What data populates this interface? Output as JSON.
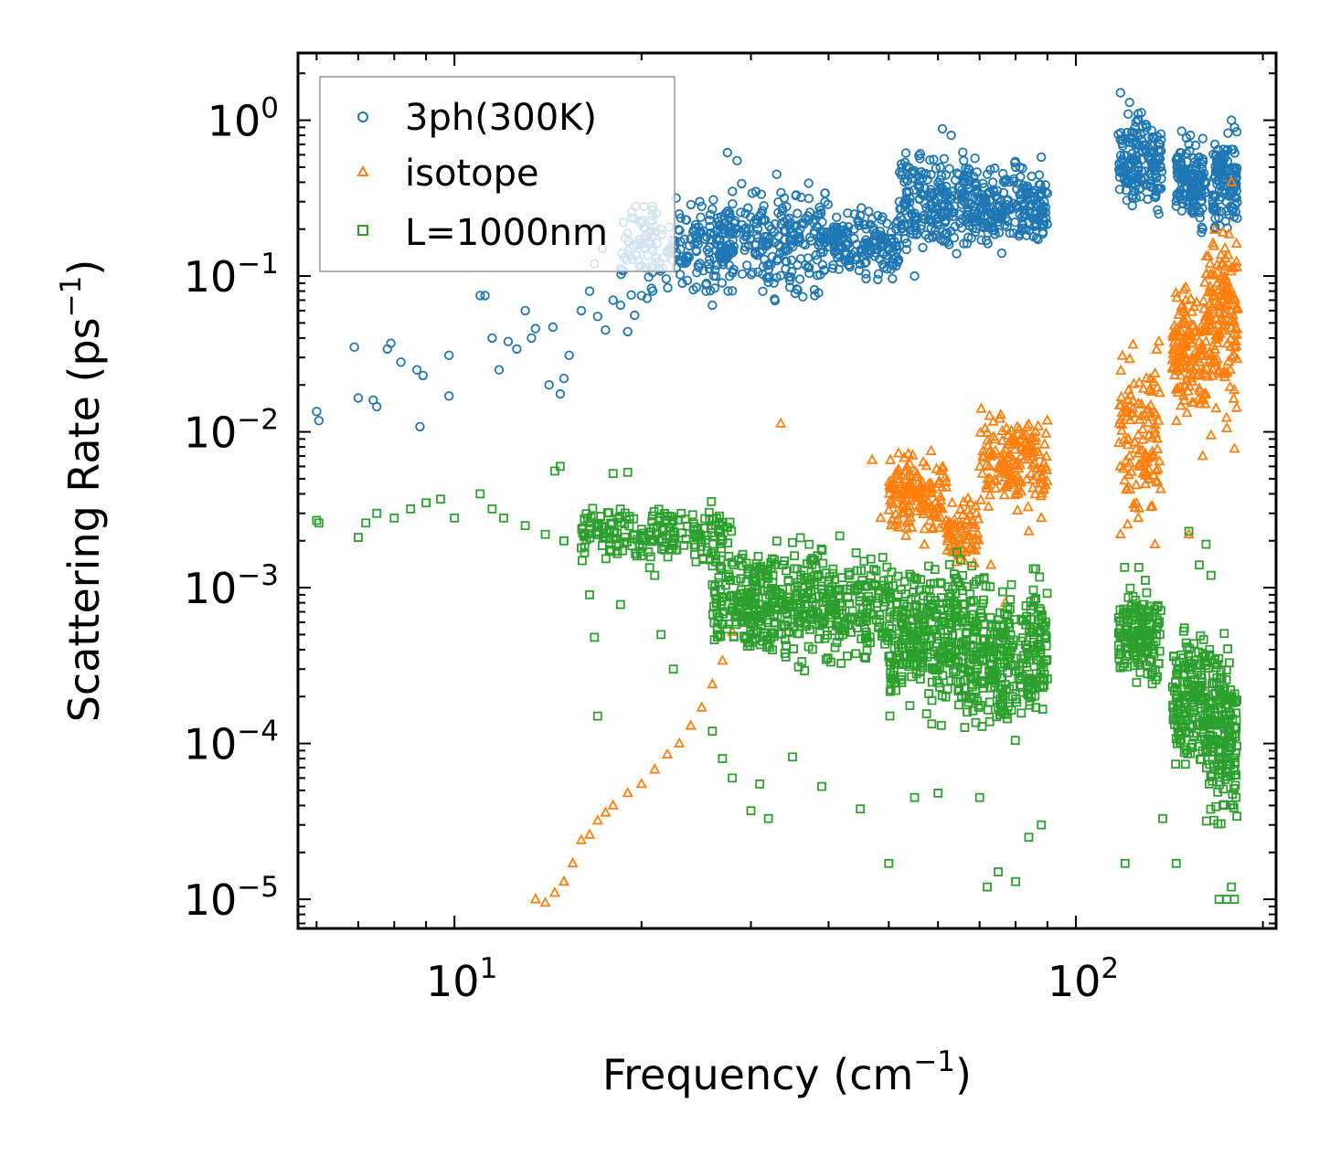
{
  "chart_data": {
    "type": "scatter",
    "xscale": "log",
    "yscale": "log",
    "xlabel": "Frequency (cm",
    "xlabel_exp": "−1",
    "xlabel_close": ")",
    "ylabel": "Scattering Rate (ps",
    "ylabel_exp": "−1",
    "ylabel_close": ")",
    "xlim": [
      5.6,
      210
    ],
    "ylim": [
      6.5e-06,
      2.7
    ],
    "xticks": [
      {
        "value": 10,
        "base": "10",
        "exp": "1"
      },
      {
        "value": 100,
        "base": "10",
        "exp": "2"
      }
    ],
    "yticks": [
      {
        "value": 1,
        "base": "10",
        "exp": "0"
      },
      {
        "value": 0.1,
        "base": "10",
        "exp": "−1"
      },
      {
        "value": 0.01,
        "base": "10",
        "exp": "−2"
      },
      {
        "value": 0.001,
        "base": "10",
        "exp": "−3"
      },
      {
        "value": 0.0001,
        "base": "10",
        "exp": "−4"
      },
      {
        "value": 1e-05,
        "base": "10",
        "exp": "−5"
      }
    ],
    "legend_position": "top-left",
    "series": [
      {
        "name": "3ph(300K)",
        "marker": "circle",
        "color": "#1f77b4",
        "points": [
          [
            6.0,
            0.0135
          ],
          [
            6.05,
            0.0118
          ],
          [
            6.9,
            0.035
          ],
          [
            7.0,
            0.0165
          ],
          [
            7.4,
            0.016
          ],
          [
            7.5,
            0.0145
          ],
          [
            7.8,
            0.034
          ],
          [
            7.9,
            0.037
          ],
          [
            8.2,
            0.028
          ],
          [
            8.7,
            0.025
          ],
          [
            8.9,
            0.023
          ],
          [
            8.8,
            0.0108
          ],
          [
            9.8,
            0.031
          ],
          [
            9.8,
            0.017
          ],
          [
            11.0,
            0.075
          ],
          [
            11.2,
            0.075
          ],
          [
            11.5,
            0.04
          ],
          [
            11.8,
            0.025
          ],
          [
            12.2,
            0.038
          ],
          [
            12.6,
            0.034
          ],
          [
            13.0,
            0.06
          ],
          [
            13.3,
            0.04
          ],
          [
            13.5,
            0.046
          ],
          [
            14.2,
            0.02
          ],
          [
            14.4,
            0.047
          ],
          [
            14.8,
            0.0175
          ],
          [
            15.0,
            0.022
          ],
          [
            15.3,
            0.031
          ],
          [
            16.0,
            0.06
          ],
          [
            16.5,
            0.08
          ],
          [
            17.0,
            0.055
          ],
          [
            17.5,
            0.045
          ],
          [
            18.0,
            0.07
          ],
          [
            18.5,
            0.065
          ],
          [
            19.0,
            0.044
          ],
          [
            19.5,
            0.056
          ],
          [
            20.0,
            0.075
          ],
          [
            16.8,
            0.12
          ],
          [
            17.3,
            0.15
          ],
          [
            18.6,
            0.14
          ],
          [
            21.5,
            0.2
          ],
          [
            23.0,
            0.25
          ],
          [
            25.0,
            0.28
          ],
          [
            26.0,
            0.065
          ],
          [
            27.5,
            0.62
          ],
          [
            28.5,
            0.55
          ],
          [
            33.0,
            0.45
          ],
          [
            36.0,
            0.2
          ],
          [
            38.0,
            0.075
          ],
          [
            44.0,
            0.2
          ],
          [
            48.0,
            0.095
          ],
          [
            52.0,
            0.3
          ],
          [
            55.0,
            0.1
          ],
          [
            61.0,
            0.88
          ],
          [
            63.0,
            0.8
          ],
          [
            66.0,
            0.55
          ],
          [
            72.0,
            0.45
          ],
          [
            76.0,
            0.14
          ],
          [
            80.0,
            0.5
          ],
          [
            85.0,
            0.35
          ],
          [
            88.0,
            0.58
          ],
          [
            118.0,
            1.5
          ],
          [
            122.0,
            1.3
          ],
          [
            126.0,
            1.1
          ],
          [
            130.0,
            0.9
          ],
          [
            134.0,
            0.5
          ],
          [
            136.0,
            0.25
          ],
          [
            148.0,
            0.85
          ],
          [
            152.0,
            0.7
          ],
          [
            156.0,
            0.5
          ],
          [
            159.0,
            0.3
          ],
          [
            160.0,
            0.2
          ],
          [
            168.0,
            0.6
          ],
          [
            172.0,
            0.55
          ],
          [
            178.0,
            1.0
          ],
          [
            180.0,
            0.9
          ]
        ],
        "bands": [
          {
            "x": [
              18.5,
              28
            ],
            "lo": 0.06,
            "hi": 0.38,
            "count": 190
          },
          {
            "x": [
              26,
              40
            ],
            "lo": 0.06,
            "hi": 0.5,
            "count": 260
          },
          {
            "x": [
              40,
              52
            ],
            "lo": 0.08,
            "hi": 0.3,
            "count": 160
          },
          {
            "x": [
              52,
              70
            ],
            "lo": 0.1,
            "hi": 0.8,
            "count": 260
          },
          {
            "x": [
              70,
              90
            ],
            "lo": 0.13,
            "hi": 0.6,
            "count": 200
          },
          {
            "x": [
              117,
              138
            ],
            "lo": 0.2,
            "hi": 1.45,
            "count": 170
          },
          {
            "x": [
              145,
              162
            ],
            "lo": 0.17,
            "hi": 0.95,
            "count": 140
          },
          {
            "x": [
              166,
              182
            ],
            "lo": 0.16,
            "hi": 1.0,
            "count": 120
          }
        ]
      },
      {
        "name": "isotope",
        "marker": "triangle",
        "color": "#ff7f0e",
        "points": [
          [
            13.5,
            1e-05
          ],
          [
            14.0,
            9.5e-06
          ],
          [
            14.5,
            1.1e-05
          ],
          [
            15.0,
            1.3e-05
          ],
          [
            15.5,
            1.7e-05
          ],
          [
            16.0,
            2.4e-05
          ],
          [
            16.5,
            2.6e-05
          ],
          [
            17.0,
            3.2e-05
          ],
          [
            17.5,
            3.6e-05
          ],
          [
            18.0,
            4e-05
          ],
          [
            19.0,
            4.8e-05
          ],
          [
            20.0,
            5.5e-05
          ],
          [
            21.0,
            6.8e-05
          ],
          [
            22.0,
            8.5e-05
          ],
          [
            23.0,
            0.0001
          ],
          [
            24.0,
            0.00013
          ],
          [
            25.0,
            0.00017
          ],
          [
            26.0,
            0.00024
          ],
          [
            27.0,
            0.00034
          ],
          [
            28.0,
            0.00052
          ],
          [
            29.0,
            0.0007
          ],
          [
            30.0,
            0.00095
          ],
          [
            33.5,
            0.0113
          ],
          [
            47.0,
            0.0066
          ],
          [
            48.5,
            0.0028
          ],
          [
            73.0,
            0.0014
          ],
          [
            77.0,
            0.0008
          ],
          [
            88.0,
            0.0028
          ],
          [
            84.0,
            0.0023
          ],
          [
            126.0,
            0.0028
          ],
          [
            118.0,
            0.0022
          ],
          [
            134.0,
            0.0019
          ],
          [
            136.0,
            0.038
          ],
          [
            152.0,
            0.0022
          ],
          [
            160.0,
            0.007
          ],
          [
            165.0,
            0.0095
          ],
          [
            174.0,
            0.13
          ],
          [
            178.0,
            0.4
          ],
          [
            180.0,
            0.0078
          ]
        ],
        "bands": [
          {
            "x": [
              50,
              62
            ],
            "lo": 0.0017,
            "hi": 0.009,
            "count": 150
          },
          {
            "x": [
              62,
              70
            ],
            "lo": 0.0012,
            "hi": 0.0045,
            "count": 70
          },
          {
            "x": [
              70,
              90
            ],
            "lo": 0.0025,
            "hi": 0.017,
            "count": 160
          },
          {
            "x": [
              117,
              137
            ],
            "lo": 0.0018,
            "hi": 0.045,
            "count": 120
          },
          {
            "x": [
              143,
              162
            ],
            "lo": 0.009,
            "hi": 0.12,
            "count": 150
          },
          {
            "x": [
              162,
              182
            ],
            "lo": 0.008,
            "hi": 0.4,
            "count": 160
          }
        ]
      },
      {
        "name": "L=1000nm",
        "marker": "square",
        "color": "#2ca02c",
        "points": [
          [
            6.0,
            0.0027
          ],
          [
            6.05,
            0.0026
          ],
          [
            7.0,
            0.0021
          ],
          [
            7.2,
            0.0026
          ],
          [
            7.5,
            0.003
          ],
          [
            8.0,
            0.0028
          ],
          [
            8.5,
            0.0032
          ],
          [
            9.0,
            0.0035
          ],
          [
            9.5,
            0.0037
          ],
          [
            10.0,
            0.0028
          ],
          [
            11.0,
            0.004
          ],
          [
            11.5,
            0.0032
          ],
          [
            12.0,
            0.0028
          ],
          [
            13.0,
            0.0025
          ],
          [
            14.0,
            0.0022
          ],
          [
            14.5,
            0.0056
          ],
          [
            14.8,
            0.006
          ],
          [
            15.0,
            0.002
          ],
          [
            16.0,
            0.0018
          ],
          [
            16.5,
            0.0009
          ],
          [
            16.8,
            0.00048
          ],
          [
            17.0,
            0.00015
          ],
          [
            18.0,
            0.0054
          ],
          [
            18.5,
            0.00078
          ],
          [
            19.0,
            0.0055
          ],
          [
            20.0,
            0.0016
          ],
          [
            21.0,
            0.0012
          ],
          [
            21.5,
            0.0005
          ],
          [
            22.5,
            0.0003
          ],
          [
            26.0,
            0.00012
          ],
          [
            27.0,
            8e-05
          ],
          [
            28.0,
            6e-05
          ],
          [
            30.0,
            3.7e-05
          ],
          [
            31.0,
            5.5e-05
          ],
          [
            32.0,
            3.3e-05
          ],
          [
            35.0,
            8.2e-05
          ],
          [
            39.0,
            5.3e-05
          ],
          [
            45.0,
            3.8e-05
          ],
          [
            50.0,
            1.7e-05
          ],
          [
            55.0,
            4.5e-05
          ],
          [
            60.0,
            4.8e-05
          ],
          [
            70.0,
            4.5e-05
          ],
          [
            72.0,
            1.2e-05
          ],
          [
            75.0,
            1.5e-05
          ],
          [
            80.0,
            1.3e-05
          ],
          [
            84.0,
            2.5e-05
          ],
          [
            88.0,
            3e-05
          ],
          [
            120.0,
            1.7e-05
          ],
          [
            138.0,
            3.3e-05
          ],
          [
            145.0,
            1.7e-05
          ],
          [
            152.0,
            0.0023
          ],
          [
            158.0,
            0.0014
          ],
          [
            162.0,
            0.0019
          ],
          [
            165.0,
            0.0012
          ],
          [
            170.0,
            1e-05
          ],
          [
            175.0,
            1e-05
          ],
          [
            178.0,
            1.2e-05
          ],
          [
            180.0,
            1e-05
          ]
        ],
        "bands": [
          {
            "x": [
              16,
              28
            ],
            "lo": 0.0012,
            "hi": 0.004,
            "count": 200
          },
          {
            "x": [
              26,
              50
            ],
            "lo": 0.00025,
            "hi": 0.0025,
            "count": 520
          },
          {
            "x": [
              50,
              66
            ],
            "lo": 0.00012,
            "hi": 0.002,
            "count": 320
          },
          {
            "x": [
              66,
              90
            ],
            "lo": 8e-05,
            "hi": 0.0018,
            "count": 340
          },
          {
            "x": [
              117,
              137
            ],
            "lo": 0.00018,
            "hi": 0.0014,
            "count": 170
          },
          {
            "x": [
              143,
              162
            ],
            "lo": 5e-05,
            "hi": 0.0008,
            "count": 170
          },
          {
            "x": [
              162,
              182
            ],
            "lo": 2e-05,
            "hi": 0.0007,
            "count": 190
          }
        ]
      }
    ]
  }
}
